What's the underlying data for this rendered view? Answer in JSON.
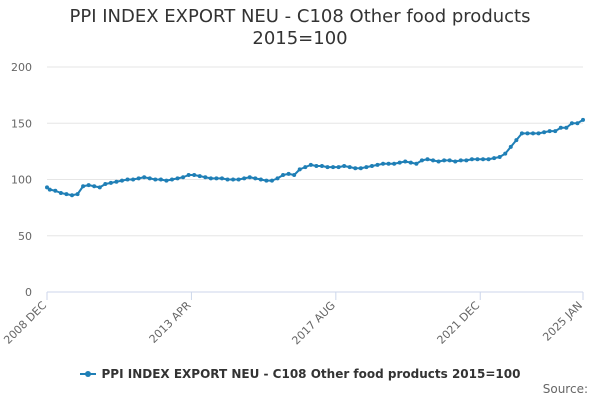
{
  "title": {
    "line1": "PPI INDEX EXPORT NEU - C108 Other food products",
    "line2": "2015=100"
  },
  "legend": {
    "label": "PPI INDEX EXPORT NEU - C108 Other food products 2015=100"
  },
  "source": {
    "label": "Source:"
  },
  "colors": {
    "series": "#1f7fb6",
    "grid": "#e6e6e6",
    "axis": "#ccd6eb",
    "text": "#666666"
  },
  "chart_data": {
    "type": "line",
    "title": "PPI INDEX EXPORT NEU - C108 Other food products 2015=100",
    "ylim": [
      0,
      200
    ],
    "y_ticks": [
      0,
      50,
      100,
      150,
      200
    ],
    "x_ticks": [
      "2008 DEC",
      "2013 APR",
      "2017 AUG",
      "2021 DEC",
      "2025 JAN"
    ],
    "grid": true,
    "legend_position": "bottom",
    "series": [
      {
        "name": "PPI INDEX EXPORT NEU - C108 Other food products 2015=100",
        "x": [
          "2008-12",
          "2009-01",
          "2009-03",
          "2009-05",
          "2009-07",
          "2009-09",
          "2009-11",
          "2010-01",
          "2010-03",
          "2010-05",
          "2010-07",
          "2010-09",
          "2010-11",
          "2011-01",
          "2011-03",
          "2011-05",
          "2011-07",
          "2011-09",
          "2011-11",
          "2012-01",
          "2012-03",
          "2012-05",
          "2012-07",
          "2012-09",
          "2012-11",
          "2013-01",
          "2013-03",
          "2013-05",
          "2013-07",
          "2013-09",
          "2013-11",
          "2014-01",
          "2014-03",
          "2014-05",
          "2014-07",
          "2014-09",
          "2014-11",
          "2015-01",
          "2015-03",
          "2015-05",
          "2015-07",
          "2015-09",
          "2015-11",
          "2016-01",
          "2016-03",
          "2016-05",
          "2016-07",
          "2016-09",
          "2016-11",
          "2017-01",
          "2017-03",
          "2017-05",
          "2017-07",
          "2017-09",
          "2017-11",
          "2018-01",
          "2018-03",
          "2018-05",
          "2018-07",
          "2018-09",
          "2018-11",
          "2019-01",
          "2019-03",
          "2019-05",
          "2019-07",
          "2019-09",
          "2019-11",
          "2020-01",
          "2020-03",
          "2020-05",
          "2020-07",
          "2020-09",
          "2020-11",
          "2021-01",
          "2021-03",
          "2021-05",
          "2021-07",
          "2021-09",
          "2021-11",
          "2022-01",
          "2022-03",
          "2022-05",
          "2022-07",
          "2022-09",
          "2022-11",
          "2023-01",
          "2023-03",
          "2023-05",
          "2023-07",
          "2023-09",
          "2023-11",
          "2024-01",
          "2024-03",
          "2024-05",
          "2024-07",
          "2024-09",
          "2024-11",
          "2025-01"
        ],
        "values": [
          93,
          91,
          90,
          88,
          87,
          86,
          87,
          94,
          95,
          94,
          93,
          96,
          97,
          98,
          99,
          100,
          100,
          101,
          102,
          101,
          100,
          100,
          99,
          100,
          101,
          102,
          104,
          104,
          103,
          102,
          101,
          101,
          101,
          100,
          100,
          100,
          101,
          102,
          101,
          100,
          99,
          99,
          101,
          104,
          105,
          104,
          109,
          111,
          113,
          112,
          112,
          111,
          111,
          111,
          112,
          111,
          110,
          110,
          111,
          112,
          113,
          114,
          114,
          114,
          115,
          116,
          115,
          114,
          117,
          118,
          117,
          116,
          117,
          117,
          116,
          117,
          117,
          118,
          118,
          118,
          118,
          119,
          120,
          123,
          129,
          135,
          141,
          141,
          141,
          141,
          142,
          143,
          143,
          146,
          146,
          150,
          150,
          153
        ]
      }
    ]
  }
}
